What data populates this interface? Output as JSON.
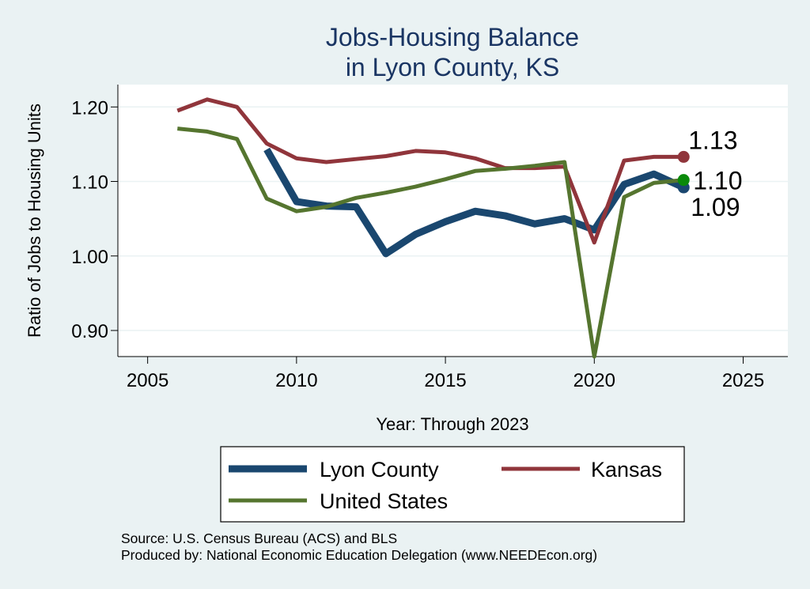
{
  "chart_data": {
    "type": "line",
    "title": [
      "Jobs-Housing Balance",
      "in Lyon County, KS"
    ],
    "xlabel": "Year: Through 2023",
    "ylabel": "Ratio of Jobs to Housing Units",
    "xlim": [
      2004,
      2026.5
    ],
    "ylim": [
      0.865,
      1.23
    ],
    "xticks": [
      2005,
      2010,
      2015,
      2020,
      2025
    ],
    "yticks": [
      {
        "value": 0.9,
        "label": "0.90"
      },
      {
        "value": 1.0,
        "label": "1.00"
      },
      {
        "value": 1.1,
        "label": "1.10"
      },
      {
        "value": 1.2,
        "label": "1.20"
      }
    ],
    "grid": true,
    "series": [
      {
        "name": "Lyon County",
        "color": "#1a476f",
        "x": [
          2009,
          2010,
          2011,
          2012,
          2013,
          2014,
          2015,
          2016,
          2017,
          2018,
          2019,
          2020,
          2021,
          2022,
          2023
        ],
        "values": [
          1.143,
          1.073,
          1.067,
          1.066,
          1.003,
          1.029,
          1.046,
          1.06,
          1.054,
          1.043,
          1.05,
          1.035,
          1.096,
          1.11,
          1.092
        ],
        "end_label": "1.09",
        "end_color": "#1a476f"
      },
      {
        "name": "Kansas",
        "color": "#90353b",
        "x": [
          2006,
          2007,
          2008,
          2009,
          2010,
          2011,
          2012,
          2013,
          2014,
          2015,
          2016,
          2017,
          2018,
          2019,
          2020,
          2021,
          2022,
          2023
        ],
        "values": [
          1.195,
          1.21,
          1.2,
          1.151,
          1.131,
          1.126,
          1.13,
          1.134,
          1.141,
          1.139,
          1.131,
          1.118,
          1.118,
          1.12,
          1.018,
          1.128,
          1.133,
          1.133
        ],
        "end_label": "1.13",
        "end_color": "#90353b"
      },
      {
        "name": "United States",
        "color": "#55752f",
        "x": [
          2006,
          2007,
          2008,
          2009,
          2010,
          2011,
          2012,
          2013,
          2014,
          2015,
          2016,
          2017,
          2018,
          2019,
          2020,
          2021,
          2022,
          2023
        ],
        "values": [
          1.171,
          1.167,
          1.157,
          1.077,
          1.06,
          1.066,
          1.078,
          1.085,
          1.093,
          1.103,
          1.114,
          1.117,
          1.121,
          1.126,
          0.865,
          1.079,
          1.098,
          1.102
        ],
        "end_label": "1.10",
        "end_color": "#0a8a0a"
      }
    ]
  },
  "legend": {
    "items": [
      "Lyon County",
      "Kansas",
      "United States"
    ]
  },
  "footnote": {
    "source": "Source: U.S. Census Bureau (ACS) and BLS",
    "produced_by": "Produced by: National Economic Education Delegation (www.NEEDEcon.org)"
  }
}
